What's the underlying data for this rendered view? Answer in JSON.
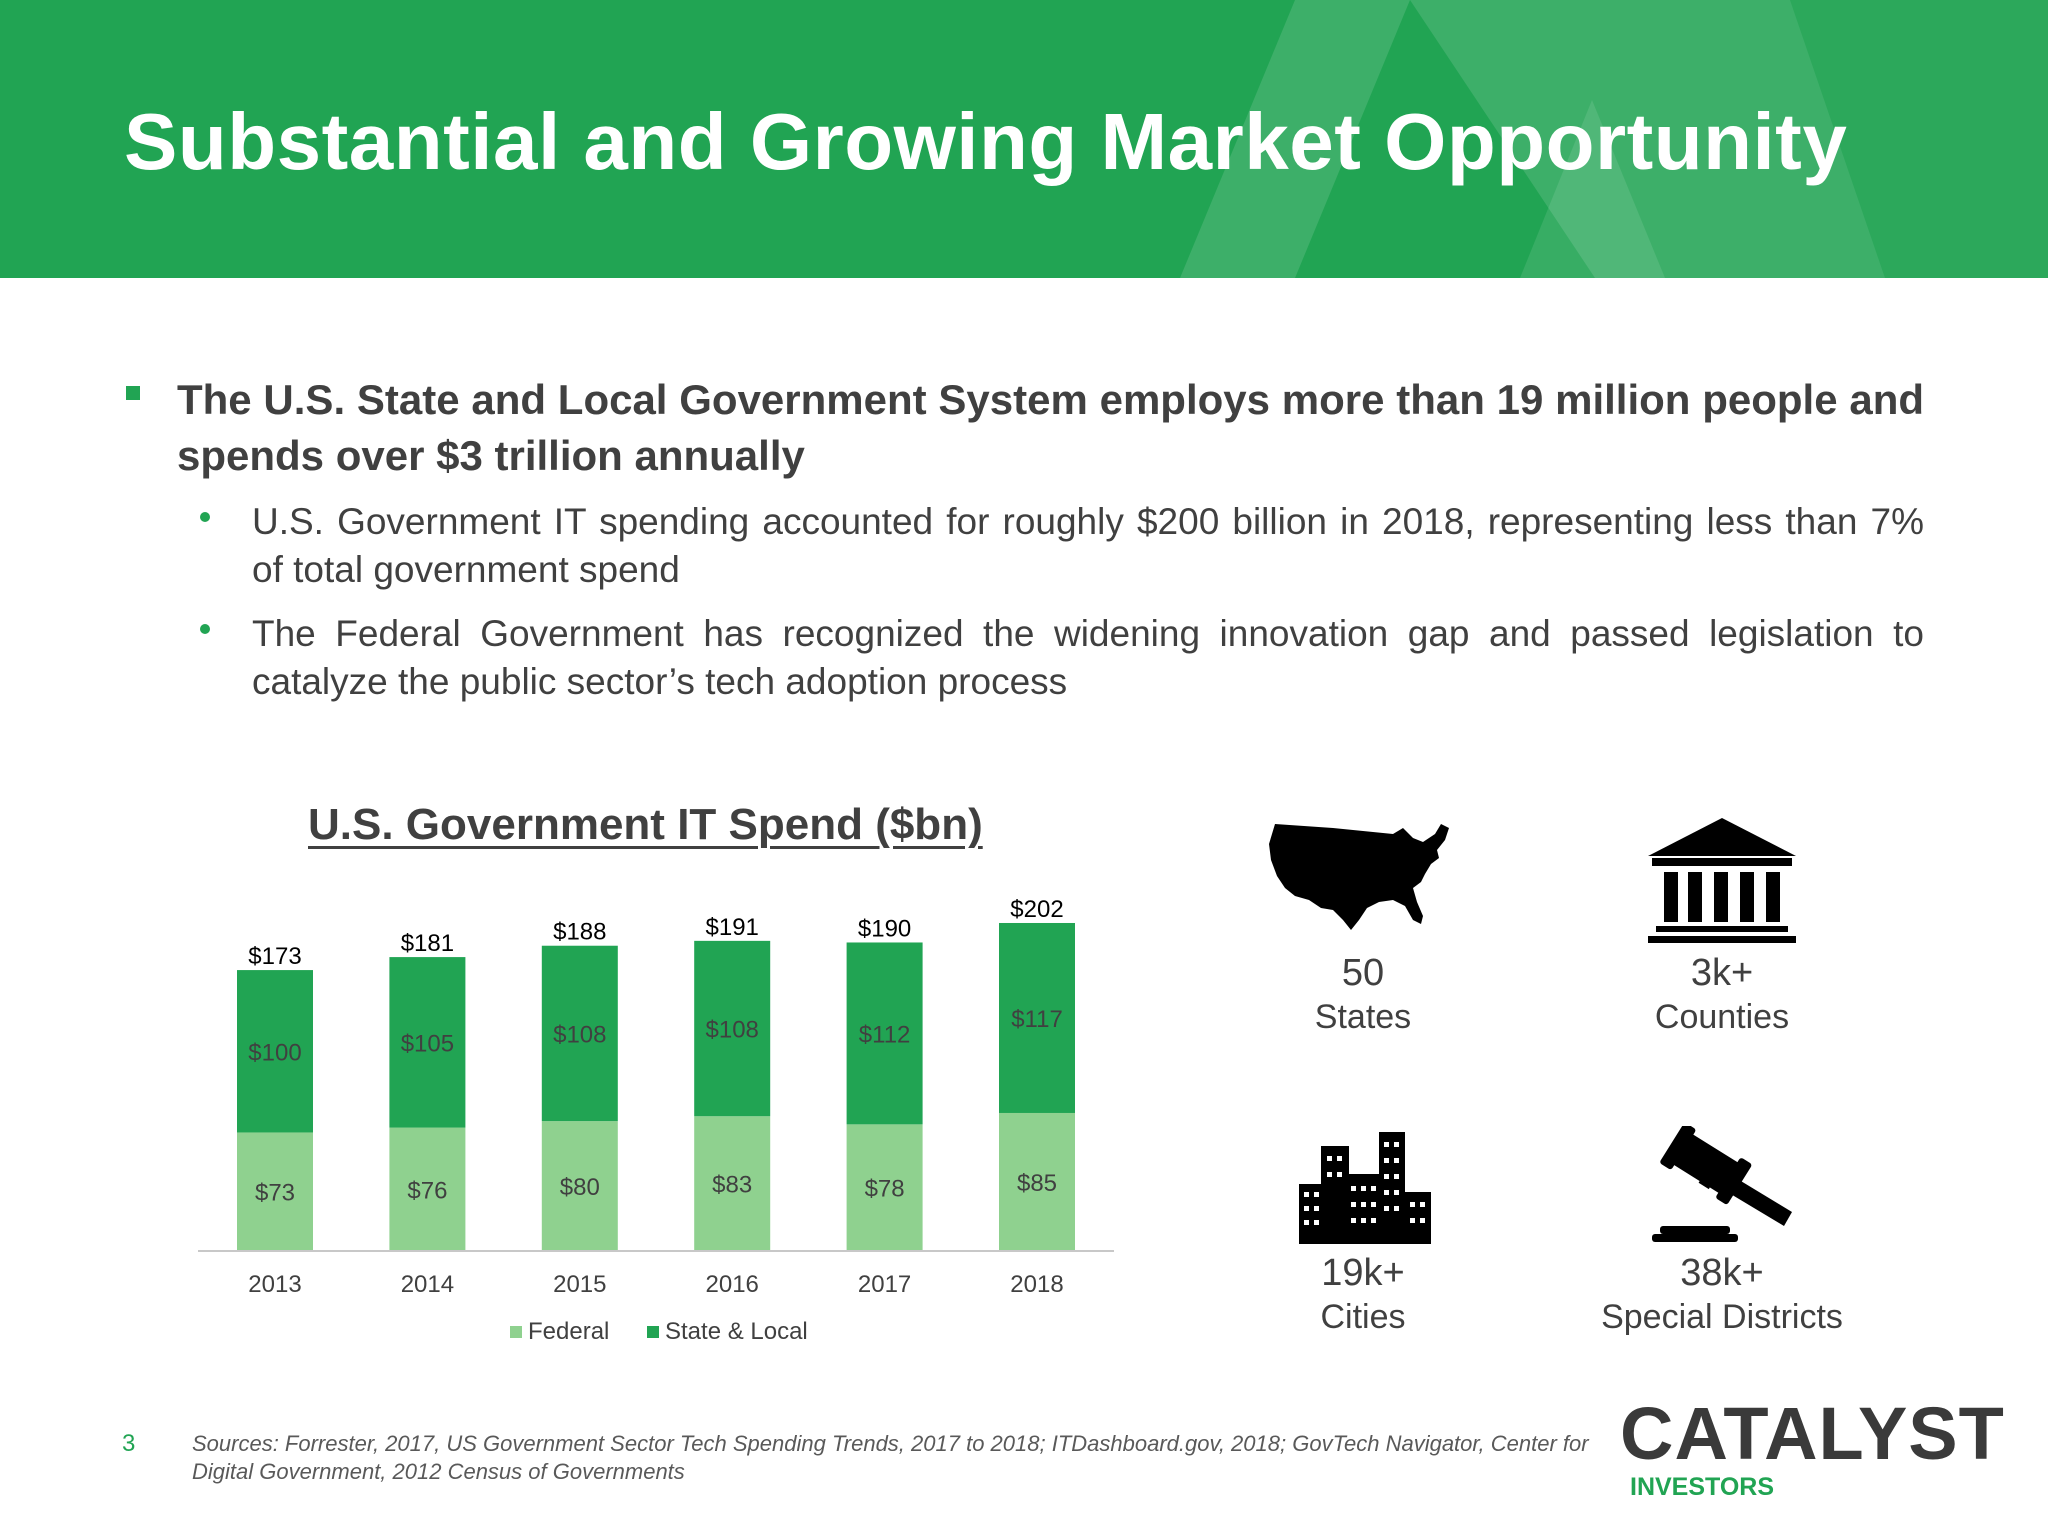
{
  "header": {
    "title": "Substantial and Growing Market Opportunity"
  },
  "main_bullet": "The U.S. State and Local Government System employs more than 19 million people and spends over $3 trillion annually",
  "sub_bullets": [
    "U.S. Government IT spending accounted for roughly $200 billion in 2018, representing less than 7% of total government spend",
    "The Federal Government has recognized the widening innovation gap and passed legislation to catalyze the public sector’s tech adoption process"
  ],
  "chart_title": "U.S. Government IT Spend ($bn)",
  "chart_data": {
    "type": "bar",
    "stacked": true,
    "title": "U.S. Government IT Spend ($bn)",
    "categories": [
      "2013",
      "2014",
      "2015",
      "2016",
      "2017",
      "2018"
    ],
    "series": [
      {
        "name": "Federal",
        "values": [
          73,
          76,
          80,
          83,
          78,
          85
        ],
        "labels": [
          "$73",
          "$76",
          "$80",
          "$83",
          "$78",
          "$85"
        ],
        "color": "#8fd18f"
      },
      {
        "name": "State & Local",
        "values": [
          100,
          105,
          108,
          108,
          112,
          117
        ],
        "labels": [
          "$100",
          "$105",
          "$108",
          "$108",
          "$112",
          "$117"
        ],
        "color": "#21a453"
      }
    ],
    "totals": [
      173,
      181,
      188,
      191,
      190,
      202
    ],
    "total_labels": [
      "$173",
      "$181",
      "$188",
      "$191",
      "$190",
      "$202"
    ],
    "legend": "bottom",
    "grid": false,
    "ylim": [
      0,
      210
    ]
  },
  "stats": [
    {
      "icon": "us-map-icon",
      "number": "50",
      "label": "States"
    },
    {
      "icon": "courthouse-icon",
      "number": "3k+",
      "label": "Counties"
    },
    {
      "icon": "city-buildings-icon",
      "number": "19k+",
      "label": "Cities"
    },
    {
      "icon": "gavel-icon",
      "number": "38k+",
      "label": "Special Districts"
    }
  ],
  "footer": {
    "page_number": "3",
    "sources": "Sources: Forrester, 2017, US Government Sector Tech Spending Trends, 2017 to 2018; ITDashboard.gov, 2018; GovTech Navigator, Center for Digital Government, 2012 Census of Governments"
  },
  "logo": {
    "name": "CATALYST",
    "sub": "INVESTORS"
  },
  "colors": {
    "brand_green": "#21a453",
    "light_green": "#8fd18f",
    "text": "#404040"
  }
}
